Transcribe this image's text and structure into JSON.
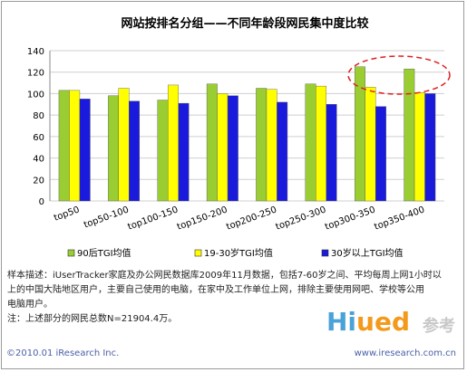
{
  "chart_data": {
    "type": "bar",
    "title": "网站按排名分组——不同年龄段网民集中度比较",
    "categories": [
      "top50",
      "top50-100",
      "top100-150",
      "top150-200",
      "top200-250",
      "top250-300",
      "top300-350",
      "top350-400"
    ],
    "series": [
      {
        "name": "90后TGI均值",
        "color": "#9acd32",
        "values": [
          103,
          98,
          94,
          109,
          105,
          109,
          125,
          123
        ]
      },
      {
        "name": "19-30岁TGI均值",
        "color": "#ffff00",
        "values": [
          103,
          105,
          108,
          100,
          104,
          107,
          106,
          101
        ]
      },
      {
        "name": "30岁以上TGI均值",
        "color": "#1a1adc",
        "values": [
          95,
          93,
          91,
          98,
          92,
          90,
          88,
          100
        ]
      }
    ],
    "ylim": [
      0,
      140
    ],
    "yticks": [
      0,
      20,
      40,
      60,
      80,
      100,
      120,
      140
    ],
    "grid": true,
    "legend": "bottom"
  },
  "notes": {
    "line1": "样本描述：iUserTracker家庭及办公网民数据库2009年11月数据，包括7-60岁之间、平均每周上网1小时以",
    "line2": "上的中国大陆地区用户，主要自己使用的电脑，在家中及工作单位上网，排除主要使用网吧、学校等公用",
    "line3": "电脑用户。",
    "line4": "注：上述部分的网民总数N=21904.4万。"
  },
  "footer": {
    "copyright": "©2010.01 iResearch Inc.",
    "website": "www.iresearch.com.cn"
  },
  "watermark": {
    "brand_a": "Hi",
    "brand_b": "ued",
    "brand_cn": "参考"
  }
}
